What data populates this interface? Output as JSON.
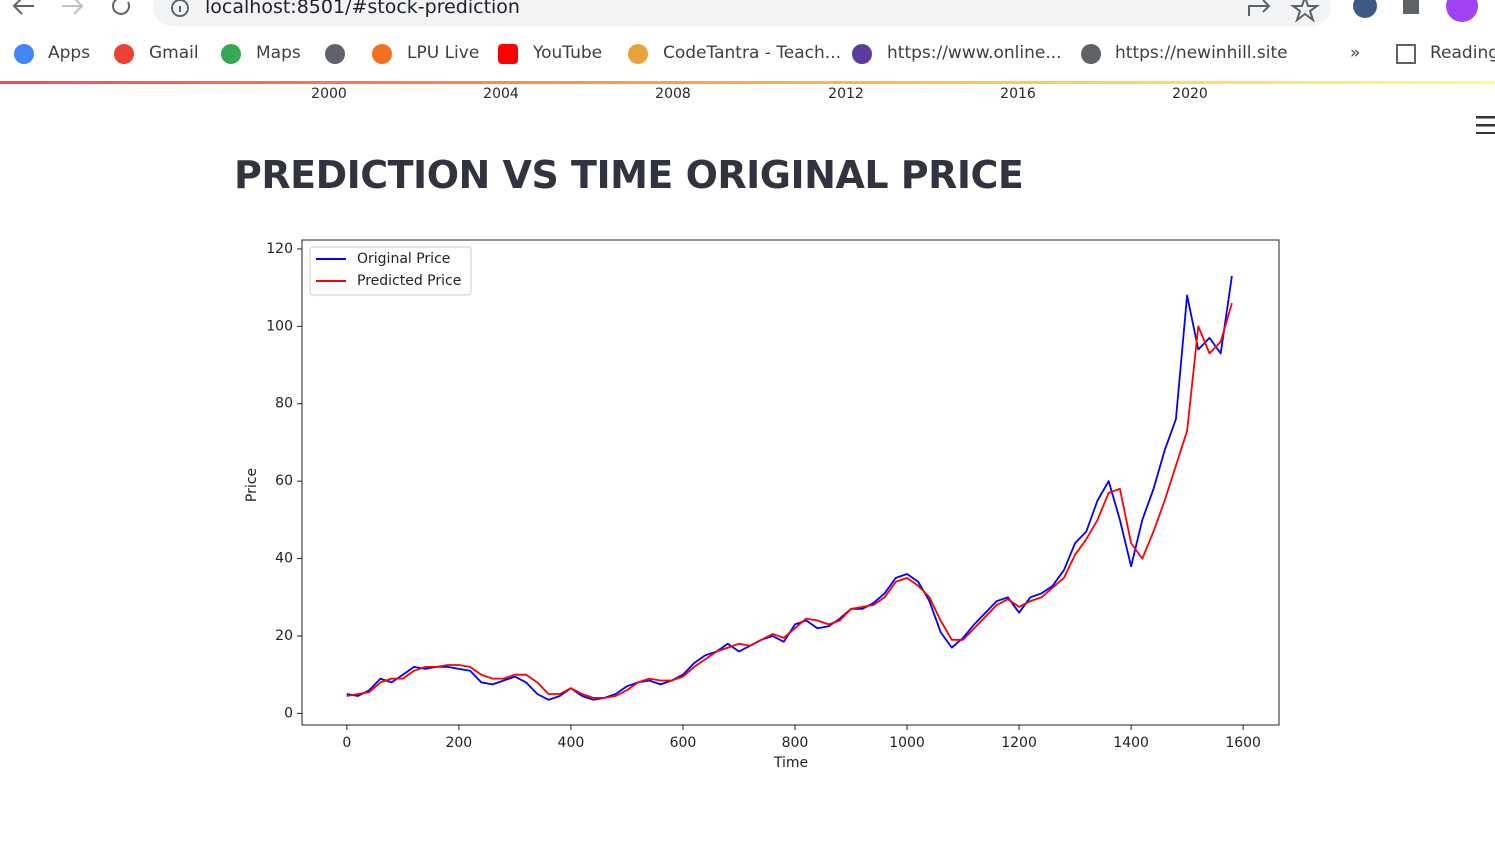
{
  "browser": {
    "url": "localhost:8501/#stock-prediction",
    "bookmarks": [
      "Apps",
      "Gmail",
      "Maps",
      "LPU Live",
      "YouTube",
      "CodeTantra - Teach...",
      "https://www.online...",
      "https://newinhill.site"
    ],
    "more": "»",
    "reading_list": "Reading"
  },
  "previous_chart_axis": [
    "2000",
    "2004",
    "2008",
    "2012",
    "2016",
    "2020"
  ],
  "heading": "PREDICTION VS TIME ORIGINAL PRICE",
  "chart_data": {
    "type": "line",
    "xlabel": "Time",
    "ylabel": "Price",
    "x": [
      0,
      20,
      40,
      60,
      80,
      100,
      120,
      140,
      160,
      180,
      200,
      220,
      240,
      260,
      280,
      300,
      320,
      340,
      360,
      380,
      400,
      420,
      440,
      460,
      480,
      500,
      520,
      540,
      560,
      580,
      600,
      620,
      640,
      660,
      680,
      700,
      720,
      740,
      760,
      780,
      800,
      820,
      840,
      860,
      880,
      900,
      920,
      940,
      960,
      980,
      1000,
      1020,
      1040,
      1060,
      1080,
      1100,
      1120,
      1140,
      1160,
      1180,
      1200,
      1220,
      1240,
      1260,
      1280,
      1300,
      1320,
      1340,
      1360,
      1380,
      1400,
      1420,
      1440,
      1460,
      1480,
      1500,
      1520,
      1540,
      1560,
      1580
    ],
    "series": [
      {
        "name": "Original Price",
        "color": "#0000ff",
        "values": [
          5,
          4.5,
          6,
          9,
          8,
          10,
          12,
          11.5,
          12,
          12,
          11.5,
          11,
          8,
          7.5,
          8.5,
          9.5,
          8,
          5,
          3.5,
          4.5,
          6.5,
          4.5,
          3.5,
          4,
          5,
          7,
          8,
          8.5,
          7.5,
          8.5,
          10,
          13,
          15,
          16,
          18,
          16,
          17.5,
          19,
          20,
          18.5,
          23,
          24,
          22,
          22.5,
          24.5,
          27,
          27,
          28.5,
          31,
          35,
          36,
          34,
          29,
          21,
          17,
          19.5,
          23,
          26,
          29,
          30,
          26,
          30,
          31,
          33,
          37,
          44,
          47,
          55,
          60,
          50,
          38,
          50,
          58,
          68,
          76,
          108,
          94,
          97,
          93,
          113
        ]
      },
      {
        "name": "Predicted Price",
        "color": "#ff0000",
        "values": [
          4.5,
          5,
          5.5,
          8,
          9,
          9,
          11,
          12,
          12,
          12.5,
          12.5,
          12,
          10,
          9,
          9,
          10,
          10,
          8,
          5,
          5,
          6.5,
          5,
          4,
          4,
          4.5,
          6,
          8,
          9,
          8.5,
          8.5,
          9.5,
          12,
          14,
          16,
          17,
          18,
          17.5,
          19,
          20.5,
          19.5,
          22,
          24.5,
          24,
          23,
          24,
          27,
          27.5,
          28,
          30,
          34,
          35,
          33,
          30,
          24,
          19,
          19,
          22,
          25,
          28,
          29.5,
          27.5,
          29,
          30,
          32.5,
          35,
          41,
          45,
          50,
          57,
          58,
          44,
          40,
          47,
          55,
          64,
          73,
          100,
          93,
          96,
          106
        ]
      }
    ],
    "xlim": [
      -80,
      1664
    ],
    "xticks": [
      0,
      200,
      400,
      600,
      800,
      1000,
      1200,
      1400,
      1600
    ],
    "ylim": [
      -3,
      122.3
    ],
    "yticks": [
      0,
      20,
      40,
      60,
      80,
      100,
      120
    ],
    "legend": "upper left",
    "grid": false
  }
}
